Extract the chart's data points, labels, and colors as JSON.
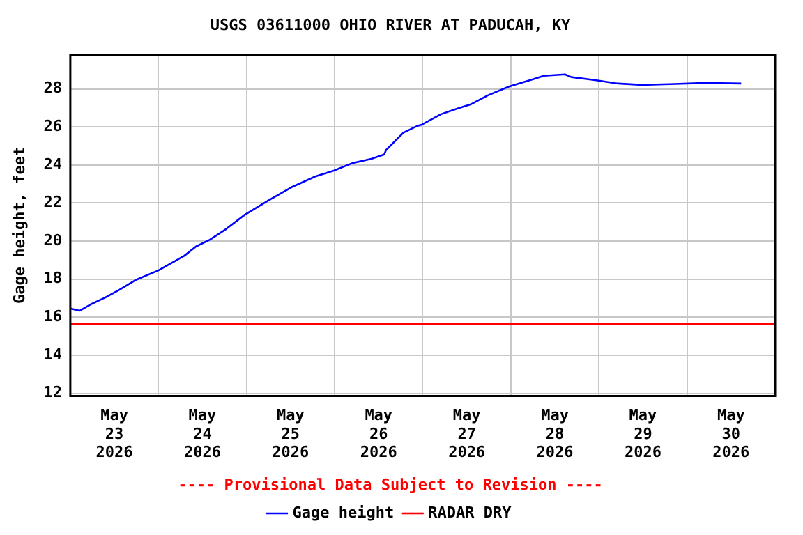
{
  "chart_data": {
    "type": "line",
    "title": "USGS 03611000 OHIO RIVER AT PADUCAH, KY",
    "ylabel": "Gage height, feet",
    "annotations": [
      "---- Provisional Data Subject to Revision ----"
    ],
    "xlim": [
      "2026-05-23",
      "2026-05-31"
    ],
    "xticks": [
      {
        "value": "2026-05-23T12:00",
        "label": "May\n23\n2026"
      },
      {
        "value": "2026-05-24T12:00",
        "label": "May\n24\n2026"
      },
      {
        "value": "2026-05-25T12:00",
        "label": "May\n25\n2026"
      },
      {
        "value": "2026-05-26T12:00",
        "label": "May\n26\n2026"
      },
      {
        "value": "2026-05-27T12:00",
        "label": "May\n27\n2026"
      },
      {
        "value": "2026-05-28T12:00",
        "label": "May\n28\n2026"
      },
      {
        "value": "2026-05-29T12:00",
        "label": "May\n29\n2026"
      },
      {
        "value": "2026-05-30T12:00",
        "label": "May\n30\n2026"
      },
      {
        "value": "2026-05-24",
        "label": null
      },
      {
        "value": "2026-05-25",
        "label": null
      },
      {
        "value": "2026-05-26",
        "label": null
      },
      {
        "value": "2026-05-27",
        "label": null
      },
      {
        "value": "2026-05-28",
        "label": null
      },
      {
        "value": "2026-05-29",
        "label": null
      },
      {
        "value": "2026-05-30",
        "label": null
      }
    ],
    "ylim": [
      11.86,
      29.8
    ],
    "yticks": [
      12,
      14,
      16,
      18,
      20,
      22,
      24,
      26,
      28
    ],
    "grid": true,
    "legend": "bottom",
    "marker": "none",
    "line_style": "solid",
    "series": [
      {
        "name": "Gage height",
        "color": "#0000ff",
        "x": [
          "2026-05-23T00:00",
          "2026-05-23T02:30",
          "2026-05-23T05:30",
          "2026-05-23T09:30",
          "2026-05-23T13:15",
          "2026-05-23T17:45",
          "2026-05-24T00:00",
          "2026-05-24T07:00",
          "2026-05-24T10:15",
          "2026-05-24T14:00",
          "2026-05-24T18:30",
          "2026-05-24T23:30",
          "2026-05-25T06:00",
          "2026-05-25T12:15",
          "2026-05-25T18:45",
          "2026-05-25T23:45",
          "2026-05-26T04:45",
          "2026-05-26T10:00",
          "2026-05-26T13:30",
          "2026-05-26T14:00",
          "2026-05-26T18:45",
          "2026-05-26T22:30",
          "2026-05-26T23:45",
          "2026-05-27T05:00",
          "2026-05-27T09:30",
          "2026-05-27T13:15",
          "2026-05-27T17:45",
          "2026-05-27T23:30",
          "2026-05-28T05:15",
          "2026-05-28T09:00",
          "2026-05-28T14:45",
          "2026-05-28T16:30",
          "2026-05-28T23:00",
          "2026-05-29T05:15",
          "2026-05-29T11:45",
          "2026-05-29T19:15",
          "2026-05-30T03:00",
          "2026-05-30T09:15",
          "2026-05-30T14:45"
        ],
        "values": [
          16.46,
          16.34,
          16.67,
          17.03,
          17.43,
          17.95,
          18.46,
          19.22,
          19.72,
          20.07,
          20.64,
          21.38,
          22.14,
          22.83,
          23.4,
          23.7,
          24.09,
          24.32,
          24.55,
          24.78,
          25.7,
          26.05,
          26.12,
          26.67,
          26.97,
          27.2,
          27.66,
          28.12,
          28.46,
          28.69,
          28.76,
          28.62,
          28.46,
          28.28,
          28.21,
          28.25,
          28.3,
          28.3,
          28.28
        ]
      },
      {
        "name": "RADAR DRY",
        "color": "#ff0000",
        "x": [
          "2026-05-23",
          "2026-05-31"
        ],
        "values": [
          15.66,
          15.66
        ]
      }
    ]
  }
}
